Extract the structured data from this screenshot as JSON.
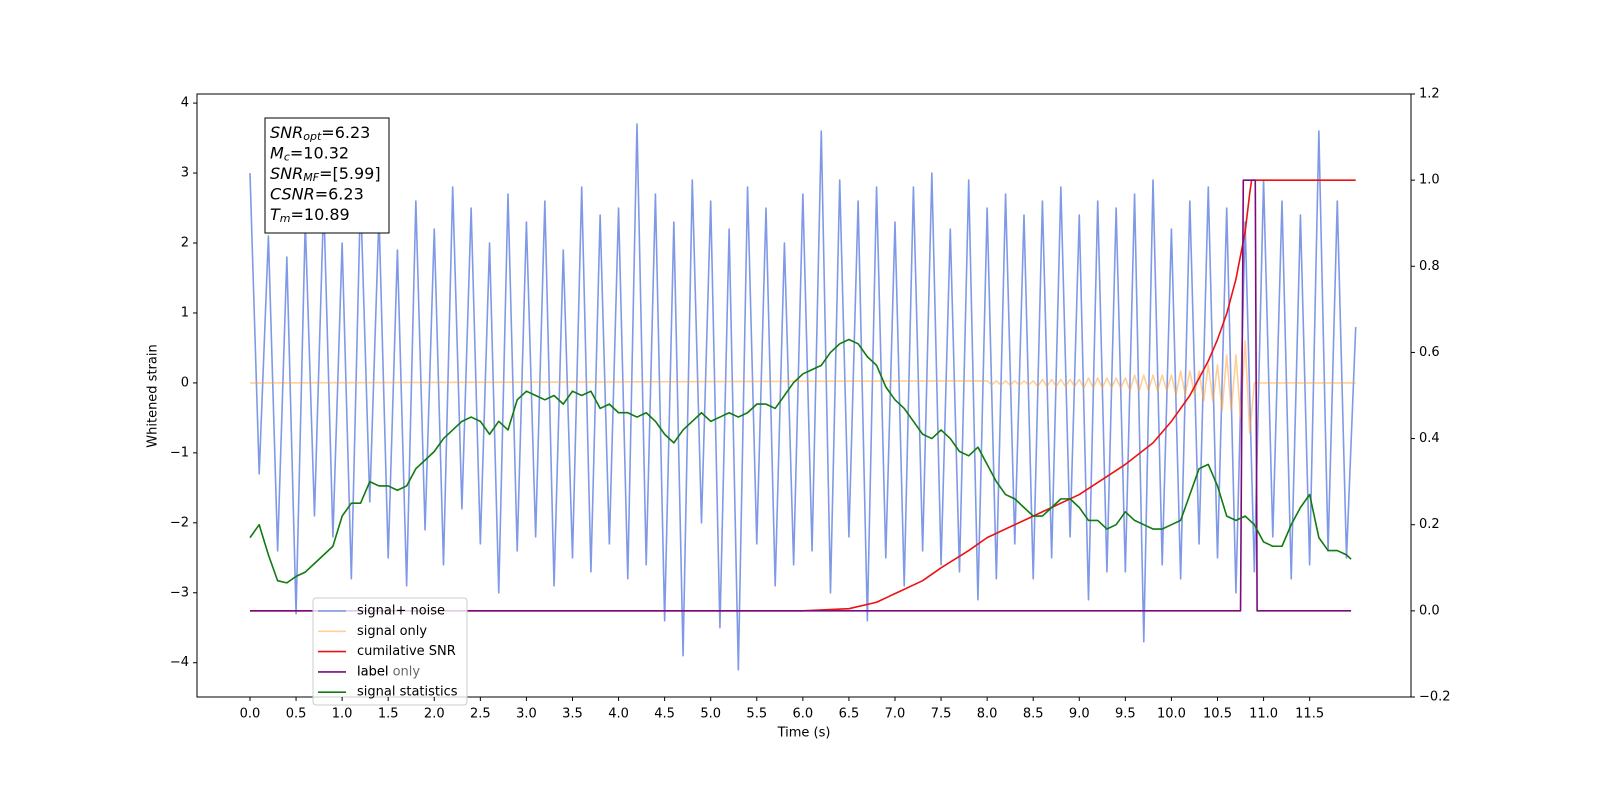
{
  "chart_data": {
    "type": "line",
    "xlabel": "Time (s)",
    "ylabel": "Whitened strain",
    "xlim": [
      -0.575,
      12.6
    ],
    "ylim": [
      -4.49,
      4.13
    ],
    "y2lim": [
      -0.2,
      1.2
    ],
    "xticks": [
      {
        "value": 0,
        "label": "0.0"
      },
      0.5,
      {
        "value": 1,
        "label": "1.0"
      },
      1.5,
      {
        "value": 2,
        "label": "2.0"
      },
      2.5,
      {
        "value": 3,
        "label": "3.0"
      },
      3.5,
      {
        "value": 4,
        "label": "4.0"
      },
      4.5,
      {
        "value": 5,
        "label": "5.0"
      },
      5.5,
      {
        "value": 6,
        "label": "6.0"
      },
      6.5,
      {
        "value": 7,
        "label": "7.0"
      },
      7.5,
      {
        "value": 8,
        "label": "8.0"
      },
      8.5,
      {
        "value": 9,
        "label": "9.0"
      },
      9.5,
      {
        "value": 10,
        "label": "10.0"
      },
      10.5,
      {
        "value": 11,
        "label": "11.0"
      },
      11.5
    ],
    "yticks": [
      {
        "value": -4,
        "label": "−4"
      },
      {
        "value": -3,
        "label": "−3"
      },
      {
        "value": -2,
        "label": "−2"
      },
      {
        "value": -1,
        "label": "−1"
      },
      0,
      1,
      2,
      3,
      4
    ],
    "y2ticks": [
      {
        "value": -0.2,
        "label": "−0.2"
      },
      {
        "value": 0,
        "label": "0.0"
      },
      0.2,
      0.4,
      0.6,
      0.8,
      {
        "value": 1,
        "label": "1.0"
      },
      1.2
    ],
    "info_box": [
      {
        "symbol": "SNR",
        "subscript": "opt",
        "text": "=6.23"
      },
      {
        "symbol": "M",
        "subscript": "c",
        "text": "=10.32"
      },
      {
        "symbol": "SNR",
        "subscript": "MF",
        "text": "=[5.99]"
      },
      {
        "symbol": "CSNR",
        "subscript": null,
        "text": "=6.23"
      },
      {
        "symbol": "T",
        "subscript": "m",
        "text": "=10.89"
      }
    ],
    "legend_overlapped_text": "label only",
    "series": [
      {
        "name": "signal+ noise",
        "color": "#7894e6",
        "axis": "y",
        "x": [
          0,
          0.1,
          0.2,
          0.3,
          0.4,
          0.5,
          0.6,
          0.7,
          0.8,
          0.9,
          1,
          1.1,
          1.2,
          1.3,
          1.4,
          1.5,
          1.6,
          1.7,
          1.8,
          1.9,
          2,
          2.1,
          2.2,
          2.3,
          2.4,
          2.5,
          2.6,
          2.7,
          2.8,
          2.9,
          3,
          3.1,
          3.2,
          3.3,
          3.4,
          3.5,
          3.6,
          3.7,
          3.8,
          3.9,
          4,
          4.1,
          4.2,
          4.3,
          4.4,
          4.5,
          4.6,
          4.7,
          4.8,
          4.9,
          5,
          5.1,
          5.2,
          5.3,
          5.4,
          5.5,
          5.6,
          5.7,
          5.8,
          5.9,
          6,
          6.1,
          6.2,
          6.3,
          6.4,
          6.5,
          6.6,
          6.7,
          6.8,
          6.9,
          7,
          7.1,
          7.2,
          7.3,
          7.4,
          7.5,
          7.6,
          7.7,
          7.8,
          7.9,
          8,
          8.1,
          8.2,
          8.3,
          8.4,
          8.5,
          8.6,
          8.7,
          8.8,
          8.9,
          9,
          9.1,
          9.2,
          9.3,
          9.4,
          9.5,
          9.6,
          9.7,
          9.8,
          9.9,
          10,
          10.1,
          10.2,
          10.3,
          10.4,
          10.5,
          10.6,
          10.7,
          10.8,
          10.9,
          11,
          11.1,
          11.2,
          11.3,
          11.4,
          11.5,
          11.6,
          11.7,
          11.8,
          11.9,
          12
        ],
        "values": [
          3.0,
          -1.3,
          2.1,
          -2.4,
          1.8,
          -3.3,
          2.3,
          -1.9,
          2.6,
          -2.2,
          2.0,
          -2.8,
          2.7,
          -1.7,
          2.4,
          -2.5,
          1.9,
          -2.9,
          2.6,
          -2.1,
          2.2,
          -2.6,
          2.8,
          -1.8,
          2.5,
          -2.3,
          2.0,
          -3.0,
          2.7,
          -2.4,
          2.3,
          -2.2,
          2.6,
          -2.9,
          1.9,
          -2.5,
          2.8,
          -2.7,
          2.4,
          -2.3,
          2.5,
          -2.8,
          3.7,
          -2.6,
          2.7,
          -3.4,
          2.3,
          -3.9,
          2.9,
          -2.0,
          2.6,
          -3.5,
          2.2,
          -4.1,
          2.8,
          -2.3,
          2.5,
          -2.9,
          2.0,
          -2.6,
          2.7,
          -2.4,
          3.6,
          -3.0,
          2.9,
          -2.2,
          2.6,
          -3.4,
          2.8,
          -2.5,
          2.3,
          -2.9,
          2.8,
          -2.4,
          3.0,
          -2.6,
          2.2,
          -2.7,
          2.9,
          -3.1,
          2.5,
          -2.8,
          2.7,
          -2.3,
          2.4,
          -2.8,
          2.6,
          -2.5,
          2.8,
          -2.2,
          2.4,
          -3.1,
          2.6,
          -2.7,
          2.5,
          -2.7,
          2.7,
          -3.7,
          2.9,
          -2.6,
          2.2,
          -2.8,
          2.6,
          -2.3,
          2.8,
          -2.5,
          2.5,
          -3.0,
          2.3,
          -2.7,
          2.9,
          -2.2,
          2.6,
          -2.8,
          2.4,
          -2.6,
          3.6,
          -2.4,
          2.6,
          -2.5,
          0.8
        ]
      },
      {
        "name": "signal only",
        "color": "#ffa033",
        "axis": "y",
        "x": [
          0,
          8,
          8.05,
          8.1,
          8.15,
          8.2,
          8.25,
          8.3,
          8.35,
          8.4,
          8.45,
          8.5,
          8.55,
          8.6,
          8.65,
          8.7,
          8.75,
          8.8,
          8.85,
          8.9,
          8.95,
          9,
          9.05,
          9.1,
          9.15,
          9.2,
          9.25,
          9.3,
          9.35,
          9.4,
          9.45,
          9.5,
          9.55,
          9.6,
          9.65,
          9.7,
          9.75,
          9.8,
          9.85,
          9.9,
          9.95,
          10,
          10.05,
          10.1,
          10.15,
          10.2,
          10.25,
          10.3,
          10.35,
          10.4,
          10.45,
          10.5,
          10.55,
          10.6,
          10.65,
          10.7,
          10.75,
          10.8,
          10.85,
          10.9,
          12
        ],
        "values": [
          0,
          0.03,
          -0.03,
          0.03,
          -0.03,
          0.03,
          -0.03,
          0.03,
          -0.03,
          0.03,
          -0.03,
          0.03,
          -0.05,
          0.05,
          -0.05,
          0.05,
          -0.05,
          0.05,
          -0.05,
          0.05,
          -0.05,
          0.05,
          -0.07,
          0.07,
          -0.07,
          0.07,
          -0.07,
          0.07,
          -0.07,
          0.07,
          -0.07,
          0.07,
          -0.11,
          0.11,
          -0.11,
          0.11,
          -0.11,
          0.11,
          -0.11,
          0.11,
          -0.11,
          0.11,
          -0.17,
          0.17,
          -0.17,
          0.17,
          -0.17,
          0.17,
          -0.26,
          0.26,
          -0.26,
          0.26,
          -0.4,
          0.4,
          -0.4,
          0.4,
          -0.5,
          0.6,
          -0.72,
          0,
          0
        ]
      },
      {
        "name": "cumilative SNR",
        "color": "#ee1111",
        "axis": "y2",
        "x": [
          0,
          6.0,
          6.5,
          6.8,
          7.0,
          7.3,
          7.5,
          7.8,
          8.0,
          8.5,
          9.0,
          9.5,
          9.8,
          10.0,
          10.2,
          10.4,
          10.5,
          10.6,
          10.7,
          10.8,
          10.85,
          10.87,
          12.0
        ],
        "values": [
          0,
          0,
          0.005,
          0.02,
          0.04,
          0.07,
          0.1,
          0.14,
          0.17,
          0.22,
          0.27,
          0.34,
          0.39,
          0.44,
          0.5,
          0.58,
          0.63,
          0.69,
          0.77,
          0.88,
          0.97,
          1,
          1
        ]
      },
      {
        "name": "label",
        "color": "#7b0a7b",
        "axis": "y2",
        "x": [
          0,
          10.75,
          10.78,
          10.91,
          10.93,
          11.95
        ],
        "values": [
          0,
          0,
          1,
          1,
          0,
          0
        ]
      },
      {
        "name": "signal statistics",
        "color": "#117a11",
        "axis": "y2",
        "x": [
          0,
          0.1,
          0.2,
          0.3,
          0.4,
          0.5,
          0.6,
          0.7,
          0.8,
          0.9,
          1,
          1.1,
          1.2,
          1.3,
          1.4,
          1.5,
          1.6,
          1.7,
          1.8,
          1.9,
          2,
          2.1,
          2.2,
          2.3,
          2.4,
          2.5,
          2.6,
          2.7,
          2.8,
          2.9,
          3,
          3.1,
          3.2,
          3.3,
          3.4,
          3.5,
          3.6,
          3.7,
          3.8,
          3.9,
          4,
          4.1,
          4.2,
          4.3,
          4.4,
          4.5,
          4.6,
          4.7,
          4.8,
          4.9,
          5,
          5.1,
          5.2,
          5.3,
          5.4,
          5.5,
          5.6,
          5.7,
          5.8,
          5.9,
          6,
          6.1,
          6.2,
          6.3,
          6.4,
          6.5,
          6.6,
          6.7,
          6.8,
          6.9,
          7,
          7.1,
          7.2,
          7.3,
          7.4,
          7.5,
          7.6,
          7.7,
          7.8,
          7.9,
          8,
          8.1,
          8.2,
          8.3,
          8.4,
          8.5,
          8.6,
          8.7,
          8.8,
          8.9,
          9,
          9.1,
          9.2,
          9.3,
          9.4,
          9.5,
          9.6,
          9.7,
          9.8,
          9.9,
          10,
          10.1,
          10.2,
          10.3,
          10.4,
          10.5,
          10.6,
          10.7,
          10.8,
          10.9,
          11,
          11.1,
          11.2,
          11.3,
          11.4,
          11.5,
          11.6,
          11.7,
          11.8,
          11.9,
          11.95
        ],
        "values": [
          0.17,
          0.2,
          0.13,
          0.07,
          0.065,
          0.08,
          0.09,
          0.11,
          0.13,
          0.15,
          0.22,
          0.25,
          0.25,
          0.3,
          0.29,
          0.29,
          0.28,
          0.29,
          0.33,
          0.35,
          0.37,
          0.4,
          0.42,
          0.44,
          0.45,
          0.44,
          0.41,
          0.44,
          0.42,
          0.49,
          0.51,
          0.5,
          0.49,
          0.5,
          0.48,
          0.51,
          0.5,
          0.51,
          0.47,
          0.48,
          0.46,
          0.46,
          0.45,
          0.46,
          0.44,
          0.41,
          0.39,
          0.42,
          0.44,
          0.46,
          0.44,
          0.45,
          0.46,
          0.45,
          0.46,
          0.48,
          0.48,
          0.47,
          0.5,
          0.53,
          0.55,
          0.56,
          0.57,
          0.6,
          0.62,
          0.63,
          0.62,
          0.59,
          0.57,
          0.52,
          0.49,
          0.47,
          0.44,
          0.41,
          0.4,
          0.42,
          0.4,
          0.37,
          0.36,
          0.38,
          0.34,
          0.3,
          0.27,
          0.26,
          0.24,
          0.22,
          0.22,
          0.24,
          0.26,
          0.26,
          0.24,
          0.21,
          0.21,
          0.19,
          0.2,
          0.23,
          0.21,
          0.2,
          0.19,
          0.19,
          0.2,
          0.21,
          0.27,
          0.33,
          0.34,
          0.29,
          0.22,
          0.21,
          0.22,
          0.2,
          0.16,
          0.15,
          0.15,
          0.2,
          0.24,
          0.27,
          0.17,
          0.14,
          0.14,
          0.13,
          0.12
        ]
      }
    ]
  }
}
